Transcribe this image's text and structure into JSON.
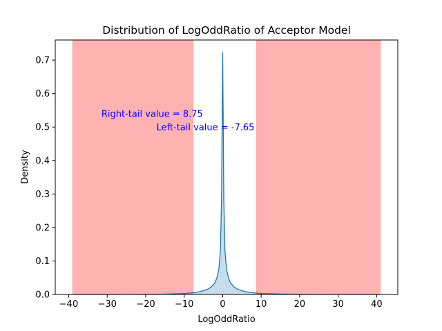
{
  "chart_data": {
    "type": "area",
    "title": "Distribution of LogOddRatio of Acceptor Model",
    "xlabel": "LogOddRatio",
    "ylabel": "Density",
    "xlim": [
      -43.5,
      45.5
    ],
    "ylim": [
      0,
      0.76
    ],
    "x_ticks": [
      -40,
      -30,
      -20,
      -10,
      0,
      10,
      20,
      30,
      40
    ],
    "y_ticks": [
      0.0,
      0.1,
      0.2,
      0.3,
      0.4,
      0.5,
      0.6,
      0.7
    ],
    "x_tick_labels": [
      "−40",
      "−30",
      "−20",
      "−10",
      "0",
      "10",
      "20",
      "30",
      "40"
    ],
    "y_tick_labels": [
      "0.0",
      "0.1",
      "0.2",
      "0.3",
      "0.4",
      "0.5",
      "0.6",
      "0.7"
    ],
    "shaded_regions": [
      {
        "x_start": -39,
        "x_end": -7.65,
        "color": "#ff0000",
        "opacity": 0.3
      },
      {
        "x_start": 8.75,
        "x_end": 41,
        "color": "#ff0000",
        "opacity": 0.3
      }
    ],
    "series": [
      {
        "line_color": "#1f77b4",
        "fill_color": "#1f77b4",
        "fill_opacity": 0.25,
        "x": [
          -39,
          -30,
          -20,
          -15,
          -10,
          -7.65,
          -6,
          -4,
          -3,
          -2,
          -1.5,
          -1,
          -0.6,
          -0.3,
          -0.15,
          0,
          0.15,
          0.3,
          0.6,
          1,
          1.5,
          2,
          3,
          4,
          6,
          8.75,
          10,
          15,
          20,
          30,
          41
        ],
        "y": [
          0.0,
          0.0,
          0.0005,
          0.001,
          0.003,
          0.005,
          0.008,
          0.015,
          0.022,
          0.035,
          0.05,
          0.075,
          0.13,
          0.28,
          0.5,
          0.722,
          0.5,
          0.28,
          0.13,
          0.075,
          0.05,
          0.035,
          0.022,
          0.015,
          0.008,
          0.004,
          0.003,
          0.0015,
          0.0008,
          0.0002,
          0.0
        ]
      }
    ],
    "annotations": [
      {
        "text": "Right-tail value = 8.75",
        "x": -31.5,
        "y": 0.53,
        "color": "#0000ff"
      },
      {
        "text": "Left-tail value = -7.65",
        "x": -17.2,
        "y": 0.49,
        "color": "#0000ff"
      }
    ],
    "grid": false
  }
}
